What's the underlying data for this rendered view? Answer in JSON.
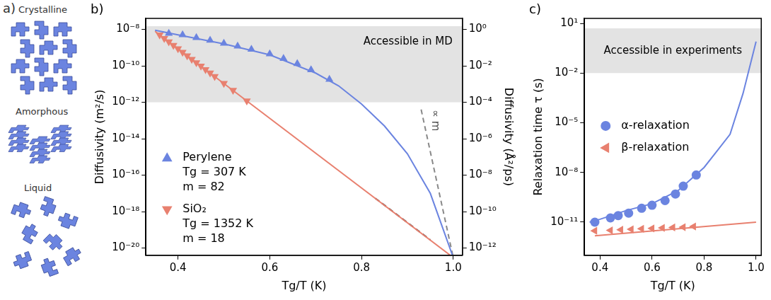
{
  "diagram": {
    "title": "a)",
    "labels": [
      "Crystalline",
      "Amorphous",
      "Liquid"
    ]
  },
  "chart_data": [
    {
      "type": "scatter",
      "title": "b)",
      "x_label": "Tg/T (K)",
      "y_label": "Diffusivity (m²/s)",
      "y2_label": "Diffusivity (Å²/ps)",
      "xlim": [
        0.33,
        1.02
      ],
      "xticks": [
        0.4,
        0.6,
        0.8,
        {
          "value": 1,
          "label": "1.0"
        }
      ],
      "ylim": [
        4e-21,
        4e-08
      ],
      "yticks": [
        {
          "value": 1e-08,
          "label": "10⁻⁸"
        },
        {
          "value": 1e-10,
          "label": "10⁻¹⁰"
        },
        {
          "value": 1e-12,
          "label": "10⁻¹²"
        },
        {
          "value": 1e-14,
          "label": "10⁻¹⁴"
        },
        {
          "value": 1e-16,
          "label": "10⁻¹⁶"
        },
        {
          "value": 1e-18,
          "label": "10⁻¹⁸"
        },
        {
          "value": 1e-20,
          "label": "10⁻²⁰"
        }
      ],
      "y2lim": [
        4e-13,
        4
      ],
      "y2ticks": [
        {
          "value": 1,
          "label": "10⁰"
        },
        {
          "value": 0.01,
          "label": "10⁻²"
        },
        {
          "value": 0.0001,
          "label": "10⁻⁴"
        },
        {
          "value": 1e-06,
          "label": "10⁻⁶"
        },
        {
          "value": 1e-08,
          "label": "10⁻⁸"
        },
        {
          "value": 1e-10,
          "label": "10⁻¹⁰"
        },
        {
          "value": 1e-12,
          "label": "10⁻¹²"
        }
      ],
      "log": "y",
      "grid": false,
      "legend": "lower left",
      "annotations": [
        {
          "text": "Accessible in MD",
          "y_range": [
            1e-12,
            1.5e-08
          ]
        },
        {
          "text": "∝ m",
          "x": 0.96,
          "y": 1e-13
        }
      ],
      "series": [
        {
          "name": "Perylene\nTg = 307 K\nm = 82",
          "type": "scatter",
          "color": "#6b84e0",
          "marker": "triangle",
          "x": [
            0.38,
            0.41,
            0.44,
            0.47,
            0.5,
            0.53,
            0.56,
            0.6,
            0.63,
            0.66,
            0.69,
            0.73
          ],
          "values": [
            6e-09,
            5e-09,
            3.5e-09,
            2.5e-09,
            1.7e-09,
            1.2e-09,
            8e-10,
            4.5e-10,
            2.5e-10,
            1.3e-10,
            6e-11,
            1.8e-11
          ]
        },
        {
          "name": "SiO₂\nTg = 1352 K\nm = 18",
          "type": "scatter",
          "color": "#e8806f",
          "marker": "triangle-down",
          "x": [
            0.36,
            0.37,
            0.38,
            0.39,
            0.4,
            0.41,
            0.42,
            0.43,
            0.44,
            0.45,
            0.46,
            0.47,
            0.48,
            0.5,
            0.52,
            0.55
          ],
          "values": [
            5e-09,
            3.2e-09,
            2.1e-09,
            1.35e-09,
            8.7e-10,
            5.6e-10,
            3.6e-10,
            2.3e-10,
            1.5e-10,
            9.8e-11,
            6.3e-11,
            4.1e-11,
            2.6e-11,
            1.1e-11,
            4.6e-12,
            1.2e-12
          ]
        },
        {
          "type": "line",
          "color": "#6b84e0",
          "line_style": "solid",
          "x": [
            0.35,
            0.4,
            0.5,
            0.6,
            0.7,
            0.75,
            0.8,
            0.85,
            0.9,
            0.95,
            1.0
          ],
          "values": [
            9e-09,
            5e-09,
            1.6e-09,
            4e-10,
            4e-11,
            8e-12,
            8e-13,
            5e-14,
            1.5e-15,
            1e-17,
            3e-21
          ]
        },
        {
          "type": "line",
          "color": "#e8806f",
          "line_style": "solid",
          "x": [
            0.35,
            1.0
          ],
          "values": [
            7.8e-09,
            3e-21
          ]
        },
        {
          "type": "line",
          "color": "#333333",
          "line_style": "dashed",
          "x": [
            0.83,
            0.95
          ],
          "values": [
            5.4e-18,
            2.8e-20
          ]
        },
        {
          "type": "line",
          "color": "#888888",
          "line_style": "dashed",
          "x": [
            0.93,
            1.0
          ],
          "values": [
            4e-13,
            3e-21
          ]
        }
      ]
    },
    {
      "type": "scatter",
      "title": "c)",
      "x_label": "Tg/T (K)",
      "y_label": "Relaxation time τ (s)",
      "xlim": [
        0.34,
        1.02
      ],
      "xticks": [
        0.4,
        0.6,
        0.8,
        {
          "value": 1,
          "label": "1.0"
        }
      ],
      "ylim": [
        1e-13,
        20
      ],
      "yticks": [
        {
          "value": 10,
          "label": "10¹"
        },
        {
          "value": 0.01,
          "label": "10⁻²"
        },
        {
          "value": 1e-05,
          "label": "10⁻⁵"
        },
        {
          "value": 1e-08,
          "label": "10⁻⁸"
        },
        {
          "value": 1e-11,
          "label": "10⁻¹¹"
        }
      ],
      "log": "y",
      "grid": false,
      "legend": "center left",
      "annotations": [
        {
          "text": "Accessible in experiments",
          "y_range": [
            0.01,
            5
          ]
        }
      ],
      "series": [
        {
          "name": "α-relaxation",
          "type": "scatter",
          "color": "#6b84e0",
          "marker": "circle",
          "x": [
            0.38,
            0.44,
            0.47,
            0.51,
            0.56,
            0.6,
            0.65,
            0.69,
            0.72,
            0.77
          ],
          "values": [
            1e-11,
            1.8e-11,
            2.5e-11,
            3.5e-11,
            6.9e-11,
            1.05e-10,
            2e-10,
            5e-10,
            1.5e-09,
            7e-09
          ]
        },
        {
          "name": "β-relaxation",
          "type": "scatter",
          "color": "#e8806f",
          "marker": "triangle-left",
          "x": [
            0.38,
            0.44,
            0.48,
            0.52,
            0.56,
            0.6,
            0.64,
            0.68,
            0.72,
            0.76
          ],
          "values": [
            3e-12,
            3.2e-12,
            3.5e-12,
            3.7e-12,
            4e-12,
            4.2e-12,
            4.5e-12,
            4.8e-12,
            5e-12,
            5.5e-12
          ]
        },
        {
          "type": "line",
          "color": "#6b84e0",
          "line_style": "solid",
          "x": [
            0.36,
            0.4,
            0.5,
            0.6,
            0.7,
            0.8,
            0.85,
            0.9,
            0.95,
            1.0
          ],
          "values": [
            1e-11,
            1.5e-11,
            5e-11,
            1.3e-10,
            8e-10,
            2e-08,
            2e-07,
            2e-06,
            0.0006,
            0.8
          ]
        },
        {
          "type": "line",
          "color": "#e8806f",
          "line_style": "solid",
          "x": [
            0.38,
            1.0
          ],
          "values": [
            1.5e-12,
            1e-11
          ]
        }
      ]
    }
  ]
}
